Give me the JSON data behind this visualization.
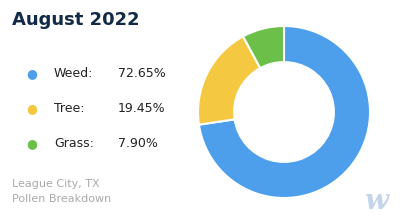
{
  "title": "August 2022",
  "subtitle": "League City, TX\nPollen Breakdown",
  "categories": [
    "Weed",
    "Tree",
    "Grass"
  ],
  "values": [
    72.65,
    19.45,
    7.9
  ],
  "colors": [
    "#4D9FEC",
    "#F5C842",
    "#6CC04A"
  ],
  "title_color": "#132a47",
  "subtitle_color": "#aaaaaa",
  "background_color": "#ffffff",
  "donut_width": 0.42,
  "startangle": 90,
  "legend_dot_size": 9,
  "legend_label_size": 9,
  "title_fontsize": 13,
  "subtitle_fontsize": 8,
  "watermark_color": "#c5d5e8",
  "watermark_fontsize": 20
}
